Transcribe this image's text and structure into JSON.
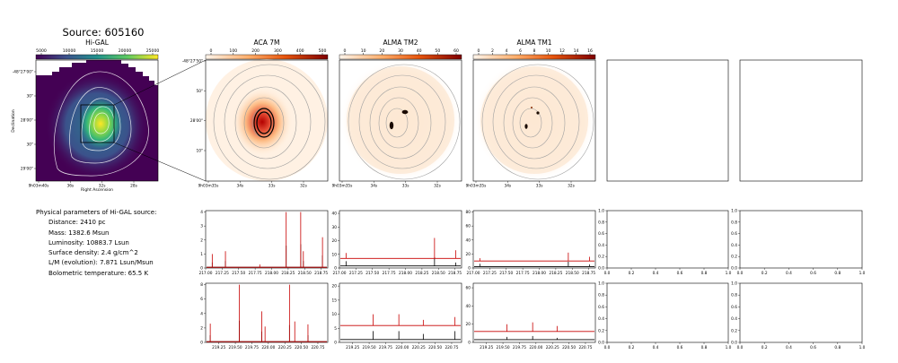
{
  "figure": {
    "title": "Source: 605160",
    "params_header": "Physical parameters of Hi-GAL source:",
    "params": [
      "Distance: 2410 pc",
      "Mass: 1382.6 Msun",
      "Luminosity: 10883.7 Lsun",
      "Surface density: 2.4 g/cm^2",
      "L/M (evolution): 7.871 Lsun/Msun",
      "Bolometric temperature: 65.5 K"
    ]
  },
  "chart_data": [
    {
      "type": "heatmap",
      "title": "Hi-GAL",
      "colormap": "viridis",
      "colorbar_ticks": [
        "5000",
        "10000",
        "15000",
        "20000",
        "25000"
      ],
      "xlabel": "Right Ascension",
      "ylabel": "Declination",
      "x_tick_labels": [
        "9h03m40s",
        "36s",
        "32s",
        "28s"
      ],
      "y_tick_labels": [
        "-48°27'00\"",
        "30\"",
        "28'00\"",
        "30\"",
        "29'00\""
      ]
    },
    {
      "type": "heatmap",
      "title": "ACA 7M",
      "colormap": "white-orange-red",
      "colorbar_ticks": [
        "0",
        "100",
        "200",
        "300",
        "400",
        "500"
      ],
      "x_tick_labels": [
        "9h03m35s",
        "34s",
        "33s",
        "32s"
      ],
      "y_tick_labels": [
        "-48°27'50\"",
        "50\"",
        "28'00\"",
        "10\""
      ]
    },
    {
      "type": "heatmap",
      "title": "ALMA TM2",
      "colormap": "white-orange-red",
      "colorbar_ticks": [
        "0",
        "10",
        "20",
        "30",
        "40",
        "50",
        "60"
      ],
      "x_tick_labels": [
        "9h03m35s",
        "34s",
        "33s",
        "32s"
      ]
    },
    {
      "type": "heatmap",
      "title": "ALMA TM1",
      "colormap": "white-orange-red",
      "colorbar_ticks": [
        "0",
        "2",
        "4",
        "6",
        "8",
        "10",
        "12",
        "14",
        "16"
      ],
      "x_tick_labels": [
        "9h03m35s",
        "34s",
        "33s",
        "32s"
      ]
    },
    {
      "type": "line",
      "panel": "ACA 7M spectrum, upper band",
      "xlim": [
        217.0,
        218.85
      ],
      "x_tick_labels": [
        "217.00",
        "217.25",
        "217.50",
        "217.75",
        "218.00",
        "218.25",
        "218.50",
        "218.75"
      ],
      "y_tick_labels": [
        "0",
        "1",
        "2",
        "3",
        "4"
      ],
      "ylim": [
        0,
        4.1
      ],
      "series": [
        {
          "color": "#c80000",
          "lines": [
            [
              217.1,
              1.0
            ],
            [
              217.3,
              1.2
            ],
            [
              217.82,
              0.25
            ],
            [
              218.22,
              4.0
            ],
            [
              218.44,
              4.0
            ],
            [
              218.48,
              1.2
            ],
            [
              218.77,
              2.2
            ]
          ]
        },
        {
          "color": "#000000",
          "lines": [
            [
              217.1,
              0.4
            ],
            [
              217.3,
              0.5
            ],
            [
              218.22,
              1.6
            ],
            [
              218.44,
              1.7
            ],
            [
              218.48,
              0.5
            ],
            [
              218.77,
              0.9
            ]
          ]
        }
      ]
    },
    {
      "type": "line",
      "panel": "ALMA TM2 spectrum, upper band",
      "xlim": [
        217.0,
        218.85
      ],
      "x_tick_labels": [
        "217.00",
        "217.25",
        "217.50",
        "217.75",
        "218.00",
        "218.25",
        "218.50",
        "218.75"
      ],
      "y_tick_labels": [
        "0",
        "10",
        "20",
        "30",
        "40"
      ],
      "ylim": [
        0,
        42
      ],
      "series": [
        {
          "color": "#c80000",
          "baseline": 7,
          "lines": [
            [
              217.1,
              11
            ],
            [
              218.44,
              22
            ],
            [
              218.76,
              13
            ]
          ]
        },
        {
          "color": "#000000",
          "baseline": 1.5,
          "lines": [
            [
              217.1,
              5
            ],
            [
              218.44,
              8
            ],
            [
              218.76,
              4
            ]
          ]
        }
      ]
    },
    {
      "type": "line",
      "panel": "ALMA TM1 spectrum, upper band",
      "xlim": [
        217.0,
        218.85
      ],
      "x_tick_labels": [
        "217.00",
        "217.25",
        "217.50",
        "217.75",
        "218.00",
        "218.25",
        "218.50",
        "218.75"
      ],
      "y_tick_labels": [
        "0",
        "20",
        "40",
        "60",
        "80"
      ],
      "ylim": [
        0,
        82
      ],
      "series": [
        {
          "color": "#c80000",
          "baseline": 10,
          "lines": [
            [
              217.1,
              14
            ],
            [
              218.44,
              22
            ],
            [
              218.76,
              16
            ]
          ]
        },
        {
          "color": "#000000",
          "baseline": 2,
          "lines": [
            [
              217.1,
              6
            ],
            [
              218.44,
              9
            ],
            [
              218.76,
              5
            ]
          ]
        }
      ]
    },
    {
      "type": "line",
      "panel": "empty axes (upper row, column 5)",
      "x_tick_labels": [
        "0.0",
        "0.2",
        "0.4",
        "0.6",
        "0.8",
        "1.0"
      ],
      "y_tick_labels": [
        "0.0",
        "0.2",
        "0.4",
        "0.6",
        "0.8",
        "1.0"
      ],
      "xlim": [
        0,
        1
      ],
      "ylim": [
        0,
        1
      ],
      "series": []
    },
    {
      "type": "line",
      "panel": "empty axes (upper row, column 6)",
      "x_tick_labels": [
        "0.0",
        "0.2",
        "0.4",
        "0.6",
        "0.8",
        "1.0"
      ],
      "y_tick_labels": [
        "0.0",
        "0.2",
        "0.4",
        "0.6",
        "0.8",
        "1.0"
      ],
      "xlim": [
        0,
        1
      ],
      "ylim": [
        0,
        1
      ],
      "series": []
    },
    {
      "type": "line",
      "panel": "ACA 7M spectrum, lower band",
      "xlim": [
        219.05,
        220.9
      ],
      "x_tick_labels": [
        "219.25",
        "219.50",
        "219.75",
        "220.00",
        "220.25",
        "220.50",
        "220.75"
      ],
      "y_tick_labels": [
        "0",
        "2",
        "4",
        "6",
        "8"
      ],
      "ylim": [
        0,
        8.2
      ],
      "series": [
        {
          "color": "#c80000",
          "lines": [
            [
              219.12,
              2.6
            ],
            [
              219.56,
              8.0
            ],
            [
              219.9,
              4.3
            ],
            [
              219.95,
              2.2
            ],
            [
              220.32,
              8.0
            ],
            [
              220.4,
              2.9
            ],
            [
              220.6,
              2.5
            ]
          ]
        },
        {
          "color": "#000000",
          "lines": [
            [
              219.12,
              1.0
            ],
            [
              219.56,
              3.0
            ],
            [
              219.9,
              1.5
            ],
            [
              220.32,
              2.4
            ],
            [
              220.6,
              1.0
            ]
          ]
        }
      ]
    },
    {
      "type": "line",
      "panel": "ALMA TM2 spectrum, lower band",
      "xlim": [
        219.05,
        220.9
      ],
      "x_tick_labels": [
        "219.25",
        "219.50",
        "219.75",
        "220.00",
        "220.25",
        "220.50",
        "220.75"
      ],
      "y_tick_labels": [
        "0",
        "5",
        "10",
        "15",
        "20"
      ],
      "ylim": [
        0,
        21
      ],
      "series": [
        {
          "color": "#c80000",
          "baseline": 6,
          "lines": [
            [
              219.56,
              10
            ],
            [
              219.95,
              10
            ],
            [
              220.32,
              8
            ],
            [
              220.8,
              9
            ]
          ]
        },
        {
          "color": "#000000",
          "baseline": 1,
          "lines": [
            [
              219.56,
              4
            ],
            [
              219.95,
              4
            ],
            [
              220.32,
              3
            ],
            [
              220.8,
              4
            ]
          ]
        }
      ]
    },
    {
      "type": "line",
      "panel": "ALMA TM1 spectrum, lower band",
      "xlim": [
        219.05,
        220.9
      ],
      "x_tick_labels": [
        "219.25",
        "219.50",
        "219.75",
        "220.00",
        "220.25",
        "220.50",
        "220.75"
      ],
      "y_tick_labels": [
        "0",
        "20",
        "40",
        "60"
      ],
      "ylim": [
        0,
        65
      ],
      "series": [
        {
          "color": "#c80000",
          "baseline": 12,
          "lines": [
            [
              219.56,
              20
            ],
            [
              219.95,
              22
            ],
            [
              220.32,
              18
            ]
          ]
        },
        {
          "color": "#000000",
          "baseline": 3,
          "lines": [
            [
              219.56,
              6
            ],
            [
              219.95,
              7
            ],
            [
              220.32,
              5
            ]
          ]
        }
      ]
    },
    {
      "type": "line",
      "panel": "empty axes (lower row, column 5)",
      "x_tick_labels": [
        "0.0",
        "0.2",
        "0.4",
        "0.6",
        "0.8",
        "1.0"
      ],
      "y_tick_labels": [
        "0.0",
        "0.2",
        "0.4",
        "0.6",
        "0.8",
        "1.0"
      ],
      "xlim": [
        0,
        1
      ],
      "ylim": [
        0,
        1
      ],
      "series": []
    },
    {
      "type": "line",
      "panel": "empty axes (lower row, column 6)",
      "x_tick_labels": [
        "0.0",
        "0.2",
        "0.4",
        "0.6",
        "0.8",
        "1.0"
      ],
      "y_tick_labels": [
        "0.0",
        "0.2",
        "0.4",
        "0.6",
        "0.8",
        "1.0"
      ],
      "xlim": [
        0,
        1
      ],
      "ylim": [
        0,
        1
      ],
      "series": []
    }
  ]
}
